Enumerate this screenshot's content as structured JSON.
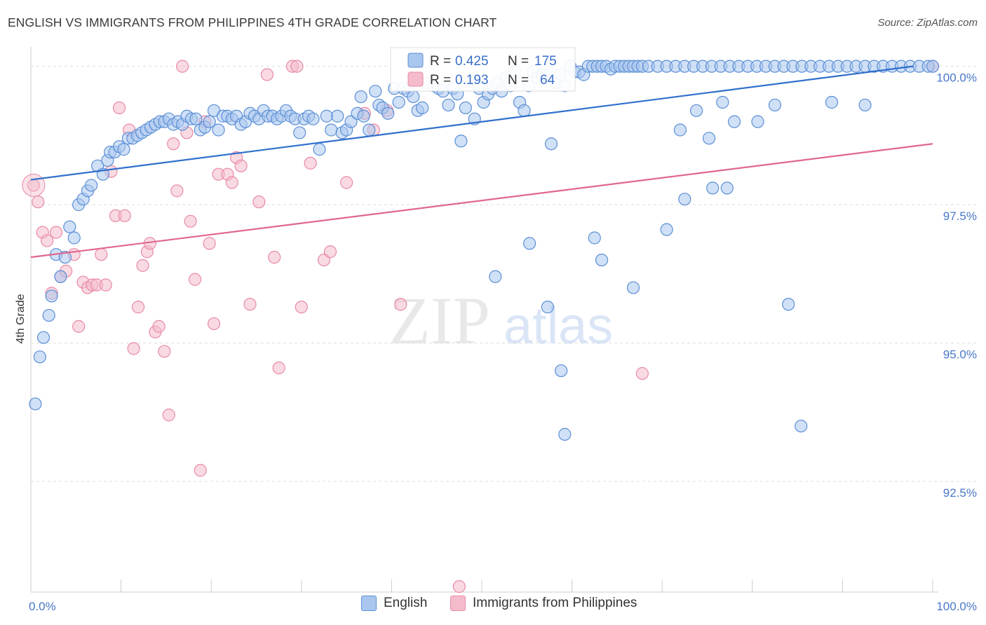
{
  "header": {
    "title": "ENGLISH VS IMMIGRANTS FROM PHILIPPINES 4TH GRADE CORRELATION CHART",
    "source": "Source: ZipAtlas.com"
  },
  "watermark": {
    "zip": "ZIP",
    "atlas": "atlas"
  },
  "colors": {
    "english_fill": "#a9c6ee",
    "english_stroke": "#5b8fd6",
    "english_line": "#2f6fcc",
    "phil_fill": "#f4bccb",
    "phil_stroke": "#e88aa6",
    "phil_line": "#e0668f",
    "tick": "#4a78c8",
    "grid": "#dddddd"
  },
  "legend_box": {
    "rows": [
      {
        "r_label": "R =",
        "r_value": "0.425",
        "n_label": "N =",
        "n_value": "175"
      },
      {
        "r_label": "R =",
        "r_value": "0.193",
        "n_label": "N =",
        "n_value": "64"
      }
    ]
  },
  "bottom_legend": {
    "english": "English",
    "phil": "Immigrants from Philippines"
  },
  "chart_data": {
    "type": "scatter",
    "title": "ENGLISH VS IMMIGRANTS FROM PHILIPPINES 4TH GRADE CORRELATION CHART",
    "xlabel": "",
    "ylabel": "4th Grade",
    "xlim": [
      0,
      100
    ],
    "ylim": [
      90.5,
      100.35
    ],
    "x_tick_labels": [
      {
        "value": 0,
        "label": "0.0%"
      },
      {
        "value": 100,
        "label": "100.0%"
      }
    ],
    "y_tick_labels": [
      {
        "value": 100.0,
        "label": "100.0%"
      },
      {
        "value": 97.5,
        "label": "97.5%"
      },
      {
        "value": 95.0,
        "label": "95.0%"
      },
      {
        "value": 92.5,
        "label": "92.5%"
      }
    ],
    "grid": true,
    "legend_position": "top-center",
    "series": [
      {
        "name": "English",
        "r": 0.425,
        "n": 175,
        "trend": {
          "x": [
            0,
            100
          ],
          "y": [
            97.95,
            100.0
          ]
        },
        "points": [
          [
            0.5,
            93.9
          ],
          [
            1.0,
            94.75
          ],
          [
            1.4,
            95.1
          ],
          [
            2.0,
            95.5
          ],
          [
            2.3,
            95.85
          ],
          [
            2.8,
            96.6
          ],
          [
            3.3,
            96.2
          ],
          [
            3.8,
            96.55
          ],
          [
            4.3,
            97.1
          ],
          [
            4.8,
            96.9
          ],
          [
            5.3,
            97.5
          ],
          [
            5.8,
            97.6
          ],
          [
            6.3,
            97.75
          ],
          [
            6.7,
            97.85
          ],
          [
            7.4,
            98.2
          ],
          [
            8.0,
            98.05
          ],
          [
            8.5,
            98.3
          ],
          [
            8.8,
            98.45
          ],
          [
            9.3,
            98.45
          ],
          [
            9.8,
            98.55
          ],
          [
            10.3,
            98.5
          ],
          [
            10.8,
            98.7
          ],
          [
            11.3,
            98.7
          ],
          [
            11.8,
            98.75
          ],
          [
            12.3,
            98.8
          ],
          [
            12.8,
            98.85
          ],
          [
            13.3,
            98.9
          ],
          [
            13.8,
            98.95
          ],
          [
            14.3,
            99.0
          ],
          [
            14.8,
            99.0
          ],
          [
            15.3,
            99.05
          ],
          [
            15.8,
            98.95
          ],
          [
            16.3,
            99.0
          ],
          [
            16.8,
            98.95
          ],
          [
            17.3,
            99.1
          ],
          [
            17.8,
            99.05
          ],
          [
            18.3,
            99.05
          ],
          [
            18.8,
            98.85
          ],
          [
            19.3,
            98.9
          ],
          [
            19.8,
            99.0
          ],
          [
            20.3,
            99.2
          ],
          [
            20.8,
            98.85
          ],
          [
            21.3,
            99.1
          ],
          [
            21.8,
            99.1
          ],
          [
            22.3,
            99.05
          ],
          [
            22.8,
            99.1
          ],
          [
            23.3,
            98.95
          ],
          [
            23.8,
            99.0
          ],
          [
            24.3,
            99.15
          ],
          [
            24.8,
            99.1
          ],
          [
            25.3,
            99.05
          ],
          [
            25.8,
            99.2
          ],
          [
            26.3,
            99.1
          ],
          [
            26.8,
            99.1
          ],
          [
            27.3,
            99.05
          ],
          [
            27.8,
            99.1
          ],
          [
            28.3,
            99.2
          ],
          [
            28.8,
            99.1
          ],
          [
            29.3,
            99.05
          ],
          [
            29.8,
            98.8
          ],
          [
            30.3,
            99.05
          ],
          [
            30.8,
            99.1
          ],
          [
            31.3,
            99.05
          ],
          [
            32.0,
            98.5
          ],
          [
            32.8,
            99.1
          ],
          [
            33.3,
            98.85
          ],
          [
            34.0,
            99.1
          ],
          [
            34.5,
            98.8
          ],
          [
            35.0,
            98.85
          ],
          [
            35.5,
            99.0
          ],
          [
            36.2,
            99.15
          ],
          [
            36.6,
            99.45
          ],
          [
            36.9,
            99.1
          ],
          [
            37.5,
            98.85
          ],
          [
            38.2,
            99.55
          ],
          [
            38.6,
            99.3
          ],
          [
            39.0,
            99.25
          ],
          [
            39.6,
            99.15
          ],
          [
            40.3,
            99.6
          ],
          [
            40.8,
            99.35
          ],
          [
            41.3,
            99.6
          ],
          [
            41.8,
            99.55
          ],
          [
            42.4,
            99.45
          ],
          [
            42.9,
            99.2
          ],
          [
            43.4,
            99.25
          ],
          [
            44.0,
            99.7
          ],
          [
            44.7,
            99.65
          ],
          [
            45.2,
            99.6
          ],
          [
            45.7,
            99.55
          ],
          [
            46.3,
            99.3
          ],
          [
            46.8,
            99.6
          ],
          [
            47.3,
            99.5
          ],
          [
            47.7,
            98.65
          ],
          [
            48.2,
            99.25
          ],
          [
            48.7,
            99.75
          ],
          [
            49.2,
            99.05
          ],
          [
            49.7,
            99.6
          ],
          [
            50.2,
            99.35
          ],
          [
            50.7,
            99.5
          ],
          [
            51.2,
            99.6
          ],
          [
            51.7,
            99.7
          ],
          [
            52.2,
            99.55
          ],
          [
            52.7,
            99.8
          ],
          [
            53.2,
            99.65
          ],
          [
            53.7,
            99.9
          ],
          [
            54.2,
            99.35
          ],
          [
            54.7,
            99.2
          ],
          [
            55.2,
            99.65
          ],
          [
            55.7,
            99.9
          ],
          [
            56.2,
            99.8
          ],
          [
            56.7,
            99.85
          ],
          [
            57.2,
            99.95
          ],
          [
            57.7,
            98.6
          ],
          [
            58.2,
            99.7
          ],
          [
            58.7,
            99.85
          ],
          [
            59.2,
            99.65
          ],
          [
            59.8,
            100.0
          ],
          [
            60.3,
            99.9
          ],
          [
            60.8,
            99.9
          ],
          [
            61.3,
            99.85
          ],
          [
            61.8,
            100.0
          ],
          [
            62.3,
            100.0
          ],
          [
            62.8,
            100.0
          ],
          [
            63.3,
            100.0
          ],
          [
            63.8,
            100.0
          ],
          [
            64.3,
            99.95
          ],
          [
            64.8,
            100.0
          ],
          [
            65.3,
            100.0
          ],
          [
            65.8,
            100.0
          ],
          [
            66.3,
            100.0
          ],
          [
            66.8,
            100.0
          ],
          [
            67.3,
            100.0
          ],
          [
            67.8,
            100.0
          ],
          [
            68.5,
            100.0
          ],
          [
            69.5,
            100.0
          ],
          [
            70.5,
            100.0
          ],
          [
            71.5,
            100.0
          ],
          [
            72.5,
            100.0
          ],
          [
            73.5,
            100.0
          ],
          [
            74.5,
            100.0
          ],
          [
            75.5,
            100.0
          ],
          [
            76.5,
            100.0
          ],
          [
            77.5,
            100.0
          ],
          [
            78.5,
            100.0
          ],
          [
            79.5,
            100.0
          ],
          [
            80.5,
            100.0
          ],
          [
            81.5,
            100.0
          ],
          [
            82.5,
            100.0
          ],
          [
            83.5,
            100.0
          ],
          [
            84.5,
            100.0
          ],
          [
            85.5,
            100.0
          ],
          [
            86.5,
            100.0
          ],
          [
            87.5,
            100.0
          ],
          [
            88.5,
            100.0
          ],
          [
            89.5,
            100.0
          ],
          [
            90.5,
            100.0
          ],
          [
            91.5,
            100.0
          ],
          [
            92.5,
            100.0
          ],
          [
            93.5,
            100.0
          ],
          [
            94.5,
            100.0
          ],
          [
            95.5,
            100.0
          ],
          [
            96.5,
            100.0
          ],
          [
            97.5,
            100.0
          ],
          [
            98.5,
            100.0
          ],
          [
            99.5,
            100.0
          ],
          [
            100.0,
            100.0
          ],
          [
            51.5,
            96.2
          ],
          [
            55.3,
            96.8
          ],
          [
            57.3,
            95.65
          ],
          [
            58.8,
            94.5
          ],
          [
            59.2,
            93.35
          ],
          [
            62.5,
            96.9
          ],
          [
            63.3,
            96.5
          ],
          [
            66.8,
            96.0
          ],
          [
            70.5,
            97.05
          ],
          [
            72.5,
            97.6
          ],
          [
            75.2,
            98.7
          ],
          [
            76.7,
            99.35
          ],
          [
            78.0,
            99.0
          ],
          [
            82.5,
            99.3
          ],
          [
            84.0,
            95.7
          ],
          [
            85.4,
            93.5
          ],
          [
            88.8,
            99.35
          ],
          [
            92.5,
            99.3
          ],
          [
            72.0,
            98.85
          ],
          [
            73.8,
            99.2
          ],
          [
            80.6,
            99.0
          ],
          [
            77.2,
            97.8
          ],
          [
            75.6,
            97.8
          ]
        ]
      },
      {
        "name": "Immigrants from Philippines",
        "r": 0.193,
        "n": 64,
        "trend": {
          "x": [
            0,
            100
          ],
          "y": [
            96.55,
            98.6
          ]
        },
        "points": [
          [
            0.3,
            97.85
          ],
          [
            0.8,
            97.55
          ],
          [
            1.3,
            97.0
          ],
          [
            1.8,
            96.85
          ],
          [
            2.3,
            95.9
          ],
          [
            2.8,
            97.0
          ],
          [
            3.3,
            96.2
          ],
          [
            3.9,
            96.3
          ],
          [
            4.8,
            96.6
          ],
          [
            5.3,
            95.3
          ],
          [
            5.8,
            96.1
          ],
          [
            6.3,
            96.0
          ],
          [
            6.8,
            96.05
          ],
          [
            7.3,
            96.05
          ],
          [
            7.8,
            96.6
          ],
          [
            8.3,
            96.05
          ],
          [
            8.9,
            98.1
          ],
          [
            9.4,
            97.3
          ],
          [
            9.8,
            99.25
          ],
          [
            10.4,
            97.3
          ],
          [
            10.9,
            98.85
          ],
          [
            11.4,
            94.9
          ],
          [
            11.9,
            95.65
          ],
          [
            12.4,
            96.4
          ],
          [
            12.9,
            96.65
          ],
          [
            13.2,
            96.8
          ],
          [
            13.8,
            95.2
          ],
          [
            14.2,
            95.3
          ],
          [
            14.8,
            94.85
          ],
          [
            15.3,
            93.7
          ],
          [
            15.8,
            98.6
          ],
          [
            16.2,
            97.75
          ],
          [
            16.8,
            100.0
          ],
          [
            17.3,
            98.8
          ],
          [
            17.7,
            97.2
          ],
          [
            18.2,
            96.15
          ],
          [
            18.8,
            92.7
          ],
          [
            19.3,
            99.0
          ],
          [
            19.8,
            96.8
          ],
          [
            20.3,
            95.35
          ],
          [
            20.8,
            98.05
          ],
          [
            21.8,
            98.05
          ],
          [
            22.3,
            97.9
          ],
          [
            22.8,
            98.35
          ],
          [
            23.3,
            98.2
          ],
          [
            24.3,
            95.7
          ],
          [
            25.3,
            97.55
          ],
          [
            26.2,
            99.85
          ],
          [
            27.0,
            96.55
          ],
          [
            27.5,
            94.55
          ],
          [
            29.0,
            100.0
          ],
          [
            29.5,
            100.0
          ],
          [
            30.0,
            95.65
          ],
          [
            31.0,
            98.25
          ],
          [
            32.5,
            96.5
          ],
          [
            33.2,
            96.65
          ],
          [
            35.0,
            97.9
          ],
          [
            37.0,
            99.15
          ],
          [
            38.0,
            98.85
          ],
          [
            39.5,
            99.2
          ],
          [
            41.0,
            95.7
          ],
          [
            47.5,
            90.6
          ],
          [
            67.8,
            94.45
          ],
          [
            100.0,
            100.0
          ]
        ]
      }
    ]
  }
}
